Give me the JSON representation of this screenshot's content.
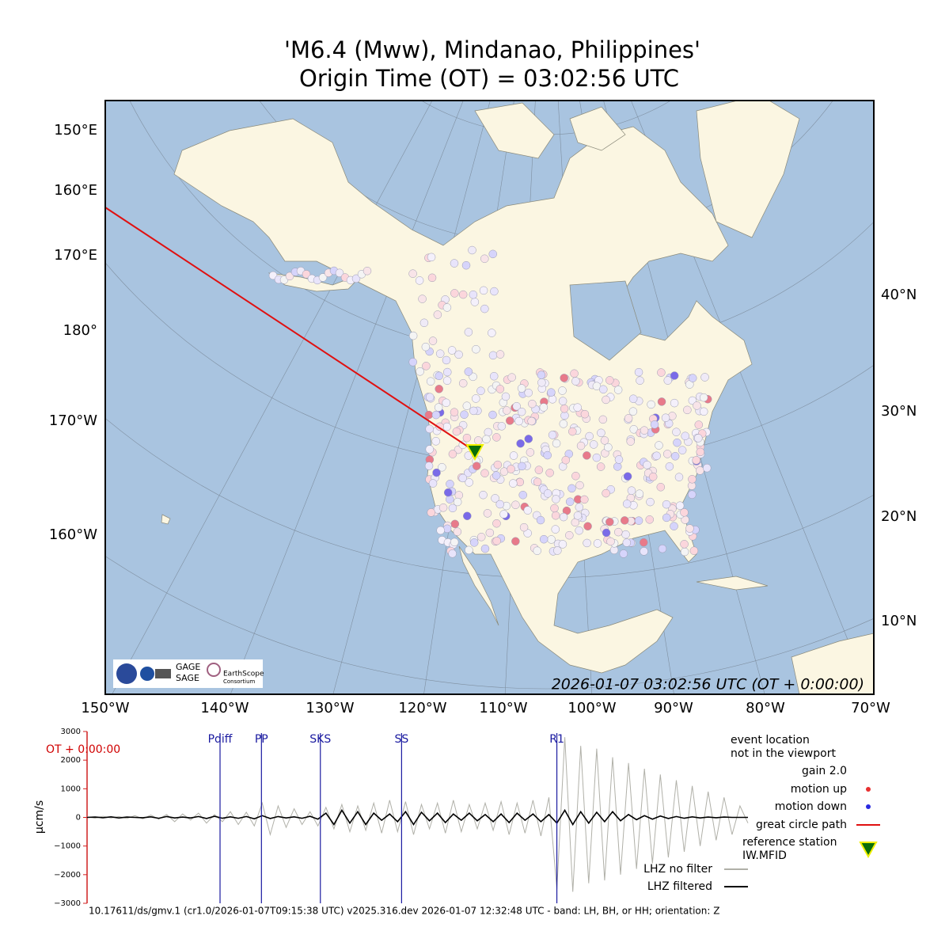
{
  "title": [
    "'M6.4 (Mww), Mindanao, Philippines'",
    "Origin Time (OT) = 03:02:56 UTC"
  ],
  "map": {
    "left_labels": [
      "150°E",
      "160°E",
      "170°E",
      "180°",
      "170°W",
      "160°W"
    ],
    "right_labels": [
      "40°N",
      "30°N",
      "20°N",
      "10°N"
    ],
    "bottom_labels": [
      "150°W",
      "140°W",
      "130°W",
      "120°W",
      "110°W",
      "100°W",
      "90°W",
      "80°W",
      "70°W"
    ],
    "timestamp": "2026-01-07 03:02:56 UTC (OT + 0:00:00)",
    "logo": [
      "GAGE",
      "SAGE",
      "EarthScope",
      "Consortium"
    ]
  },
  "chart_data": {
    "type": "line",
    "ylabel": "µcm/s",
    "ylim": [
      -3000,
      3000
    ],
    "yticks": [
      3000,
      2000,
      1000,
      0,
      {
        "value": -1000,
        "label": "−1000"
      },
      {
        "value": -2000,
        "label": "−2000"
      },
      {
        "value": -3000,
        "label": "−3000"
      }
    ],
    "annotation": "OT + 0:00:00",
    "phases": [
      {
        "label": "Pdiff",
        "at": 16.7
      },
      {
        "label": "PP",
        "at": 21.9
      },
      {
        "label": "SKS",
        "at": 29.3
      },
      {
        "label": "SS",
        "at": 39.5
      },
      {
        "label": "R1",
        "at": 59.0
      }
    ],
    "series": [
      {
        "name": "LHZ no filter",
        "color": "#b0b0a8",
        "values": [
          20,
          -30,
          40,
          -20,
          30,
          -40,
          60,
          -50,
          80,
          -60,
          100,
          -150,
          120,
          -90,
          150,
          -200,
          100,
          -150,
          200,
          -250,
          180,
          -300,
          500,
          -600,
          400,
          -350,
          300,
          -250,
          200,
          -300,
          350,
          -400,
          450,
          -500,
          400,
          -450,
          500,
          -550,
          600,
          -500,
          550,
          -600,
          450,
          -400,
          500,
          -550,
          600,
          -500,
          450,
          -400,
          500,
          -450,
          550,
          -600,
          500,
          -550,
          600,
          -650,
          700,
          -2500,
          2800,
          -2600,
          2500,
          -2300,
          2400,
          -2200,
          2100,
          -2000,
          1900,
          -1800,
          1700,
          -1600,
          1500,
          -1400,
          1300,
          -1200,
          1100,
          -1000,
          900,
          -800,
          700,
          -600,
          400,
          -200
        ]
      },
      {
        "name": "LHZ filtered",
        "color": "#000000",
        "values": [
          0,
          10,
          -10,
          20,
          -20,
          10,
          0,
          -10,
          20,
          -30,
          30,
          -20,
          10,
          -20,
          30,
          -40,
          40,
          -30,
          20,
          -30,
          30,
          -50,
          60,
          -40,
          30,
          -20,
          20,
          -30,
          40,
          -60,
          150,
          -250,
          250,
          -200,
          200,
          -250,
          150,
          -100,
          120,
          -150,
          200,
          -250,
          180,
          -120,
          150,
          -180,
          120,
          -100,
          150,
          -120,
          100,
          -150,
          120,
          -180,
          150,
          -100,
          120,
          -150,
          100,
          -200,
          250,
          -250,
          200,
          -200,
          180,
          -150,
          200,
          -120,
          100,
          -80,
          60,
          -60,
          50,
          -40,
          30,
          -30,
          20,
          -20,
          10,
          -10,
          10,
          0,
          0,
          0
        ]
      }
    ]
  },
  "legend": {
    "event_location": [
      "event location",
      "not in the viewport"
    ],
    "gain": "gain  2.0",
    "motion_up": "motion up",
    "motion_down": "motion down",
    "great_circle_path": "great circle path",
    "reference_station": [
      "reference station",
      "IW.MFID"
    ]
  },
  "footer": "10.17611/ds/gmv.1 (cr1.0/2026-01-07T09:15:38 UTC) v2025.316.dev 2026-01-07 12:32:48 UTC - band: LH, BH, or HH; orientation: Z"
}
